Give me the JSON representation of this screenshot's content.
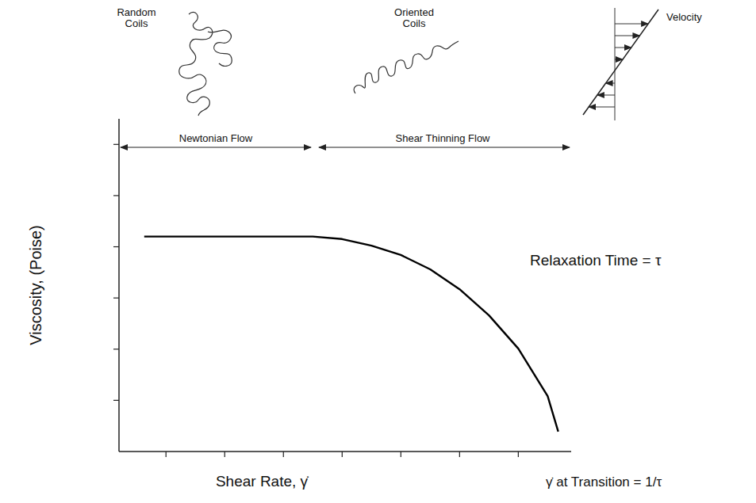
{
  "chart_data": {
    "type": "line",
    "x_label": "Shear Rate, γ̇",
    "y_label": "Viscosity, (Poise)",
    "annotations": {
      "random_coils": "Random Coils",
      "oriented_coils": "Oriented Coils",
      "velocity": "Velocity",
      "newtonian_flow": "Newtonian Flow",
      "shear_thinning_flow": "Shear Thinning Flow",
      "relaxation_time": "Relaxation Time = τ",
      "transition": "γ̇ at Transition = 1/τ"
    },
    "x": [
      0.63,
      1,
      1.5,
      2,
      2.5,
      3,
      3.5,
      4,
      4.5,
      5,
      5.5,
      6,
      6.5,
      7,
      7.5,
      7.68
    ],
    "values": [
      4.2,
      4.2,
      4.2,
      4.2,
      4.2,
      4.2,
      4.2,
      4.15,
      4.02,
      3.84,
      3.56,
      3.17,
      2.66,
      2.01,
      1.08,
      0.39
    ],
    "color": "#000000",
    "line_style": "solid",
    "marker": "none",
    "xlim": [
      0.2,
      7.9
    ],
    "ylim": [
      0,
      6.5
    ],
    "xticks": [
      1,
      2,
      3,
      4,
      5,
      6,
      7
    ],
    "yticks": [
      1,
      2,
      3,
      4,
      5,
      6
    ],
    "grid": false,
    "tick_labels": false
  }
}
